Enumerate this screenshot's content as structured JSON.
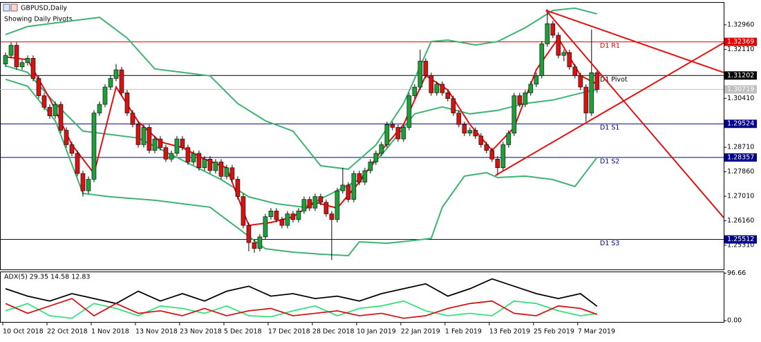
{
  "chart_data": {
    "type": "candlestick",
    "title": "GBPUSD,Daily",
    "subtitle": "Showing Daily Pivots.",
    "xlim": [
      -1,
      129.9
    ],
    "xticks": [
      {
        "value": 0,
        "label": "10 Oct 2018"
      },
      {
        "value": 8,
        "label": "22 Oct 2018"
      },
      {
        "value": 16,
        "label": "1 Nov 2018"
      },
      {
        "value": 24,
        "label": "13 Nov 2018"
      },
      {
        "value": 32,
        "label": "23 Nov 2018"
      },
      {
        "value": 40,
        "label": "5 Dec 2018"
      },
      {
        "value": 48,
        "label": "17 Dec 2018"
      },
      {
        "value": 56,
        "label": "28 Dec 2018"
      },
      {
        "value": 64,
        "label": "10 Jan 2019"
      },
      {
        "value": 72,
        "label": "22 Jan 2019"
      },
      {
        "value": 80,
        "label": "1 Feb 2019"
      },
      {
        "value": 88,
        "label": "13 Feb 2019"
      },
      {
        "value": 96,
        "label": "25 Feb 2019"
      },
      {
        "value": 104,
        "label": "7 Mar 2019"
      }
    ],
    "ylim": [
      1.2447,
      1.3375
    ],
    "yticks": [
      {
        "value": 1.3296,
        "label": "1.32960"
      },
      {
        "value": 1.3211,
        "label": "1.32110"
      },
      {
        "value": 1.3041,
        "label": "1.30410"
      },
      {
        "value": 1.2871,
        "label": "1.28710"
      },
      {
        "value": 1.2786,
        "label": "1.27860"
      },
      {
        "value": 1.2701,
        "label": "1.27010"
      },
      {
        "value": 1.2616,
        "label": "1.26160"
      },
      {
        "value": 1.2531,
        "label": "1.25310"
      }
    ],
    "up_color": "#1f9e3a",
    "down_color": "#d41414",
    "open": [
      1.316,
      1.319,
      1.3225,
      1.315,
      1.3165,
      1.318,
      1.311,
      1.305,
      1.301,
      1.298,
      1.302,
      1.293,
      1.288,
      1.285,
      1.278,
      1.272,
      1.276,
      1.299,
      1.302,
      1.308,
      1.311,
      1.314,
      1.306,
      1.299,
      1.295,
      1.288,
      1.294,
      1.286,
      1.29,
      1.287,
      1.283,
      1.285,
      1.29,
      1.287,
      1.282,
      1.285,
      1.28,
      1.283,
      1.279,
      1.282,
      1.277,
      1.28,
      1.276,
      1.27,
      1.26,
      1.254,
      1.252,
      1.256,
      1.263,
      1.265,
      1.262,
      1.26,
      1.264,
      1.262,
      1.265,
      1.269,
      1.266,
      1.27,
      1.268,
      1.264,
      1.262,
      1.272,
      1.274,
      1.269,
      1.278,
      1.275,
      1.279,
      1.282,
      1.285,
      1.288,
      1.295,
      1.294,
      1.29,
      1.294,
      1.305,
      1.308,
      1.317,
      1.312,
      1.306,
      1.309,
      1.306,
      1.304,
      1.299,
      1.295,
      1.292,
      1.293,
      1.291,
      1.288,
      1.286,
      1.283,
      1.28,
      1.288,
      1.292,
      1.305,
      1.302,
      1.306,
      1.309,
      1.312,
      1.323,
      1.33,
      1.326,
      1.319,
      1.32,
      1.315,
      1.312,
      1.308,
      1.299,
      1.313
    ],
    "high": [
      1.32,
      1.3235,
      1.3235,
      1.3175,
      1.319,
      1.319,
      1.312,
      1.306,
      1.302,
      1.303,
      1.303,
      1.294,
      1.289,
      1.286,
      1.279,
      1.277,
      1.3,
      1.303,
      1.309,
      1.312,
      1.316,
      1.315,
      1.307,
      1.3,
      1.296,
      1.295,
      1.295,
      1.291,
      1.291,
      1.288,
      1.286,
      1.291,
      1.291,
      1.288,
      1.286,
      1.286,
      1.284,
      1.284,
      1.283,
      1.283,
      1.281,
      1.281,
      1.277,
      1.271,
      1.261,
      1.255,
      1.257,
      1.264,
      1.266,
      1.266,
      1.263,
      1.265,
      1.265,
      1.266,
      1.27,
      1.27,
      1.271,
      1.271,
      1.269,
      1.265,
      1.273,
      1.28,
      1.275,
      1.279,
      1.279,
      1.28,
      1.283,
      1.286,
      1.289,
      1.296,
      1.296,
      1.295,
      1.295,
      1.306,
      1.309,
      1.321,
      1.318,
      1.313,
      1.31,
      1.31,
      1.307,
      1.305,
      1.3,
      1.296,
      1.294,
      1.294,
      1.292,
      1.289,
      1.287,
      1.284,
      1.289,
      1.293,
      1.306,
      1.306,
      1.307,
      1.31,
      1.313,
      1.324,
      1.335,
      1.331,
      1.327,
      1.321,
      1.321,
      1.316,
      1.313,
      1.309,
      1.328,
      1.314
    ],
    "low": [
      1.315,
      1.318,
      1.314,
      1.314,
      1.3155,
      1.31,
      1.304,
      1.3,
      1.297,
      1.297,
      1.292,
      1.287,
      1.284,
      1.277,
      1.27,
      1.271,
      1.275,
      1.298,
      1.301,
      1.307,
      1.31,
      1.305,
      1.298,
      1.294,
      1.287,
      1.287,
      1.285,
      1.285,
      1.286,
      1.282,
      1.282,
      1.284,
      1.286,
      1.281,
      1.281,
      1.279,
      1.279,
      1.278,
      1.278,
      1.276,
      1.276,
      1.275,
      1.269,
      1.259,
      1.251,
      1.2505,
      1.251,
      1.255,
      1.262,
      1.261,
      1.259,
      1.259,
      1.261,
      1.261,
      1.264,
      1.265,
      1.265,
      1.267,
      1.263,
      1.248,
      1.261,
      1.271,
      1.268,
      1.268,
      1.274,
      1.274,
      1.278,
      1.281,
      1.284,
      1.287,
      1.293,
      1.289,
      1.289,
      1.293,
      1.304,
      1.307,
      1.311,
      1.305,
      1.305,
      1.305,
      1.303,
      1.298,
      1.294,
      1.291,
      1.291,
      1.29,
      1.287,
      1.285,
      1.282,
      1.2773,
      1.279,
      1.287,
      1.291,
      1.301,
      1.301,
      1.305,
      1.308,
      1.311,
      1.322,
      1.325,
      1.318,
      1.317,
      1.314,
      1.311,
      1.307,
      1.296,
      1.298,
      1.306
    ],
    "close": [
      1.319,
      1.3225,
      1.315,
      1.3165,
      1.318,
      1.311,
      1.305,
      1.301,
      1.298,
      1.302,
      1.293,
      1.288,
      1.285,
      1.278,
      1.272,
      1.276,
      1.299,
      1.302,
      1.308,
      1.311,
      1.314,
      1.306,
      1.299,
      1.295,
      1.288,
      1.294,
      1.286,
      1.29,
      1.287,
      1.283,
      1.285,
      1.29,
      1.287,
      1.282,
      1.285,
      1.28,
      1.283,
      1.279,
      1.282,
      1.277,
      1.28,
      1.276,
      1.27,
      1.26,
      1.254,
      1.252,
      1.256,
      1.263,
      1.265,
      1.262,
      1.26,
      1.264,
      1.262,
      1.265,
      1.269,
      1.266,
      1.27,
      1.268,
      1.264,
      1.262,
      1.272,
      1.274,
      1.269,
      1.278,
      1.275,
      1.279,
      1.282,
      1.285,
      1.288,
      1.295,
      1.294,
      1.29,
      1.294,
      1.305,
      1.308,
      1.317,
      1.312,
      1.306,
      1.309,
      1.306,
      1.304,
      1.299,
      1.295,
      1.292,
      1.293,
      1.291,
      1.288,
      1.286,
      1.283,
      1.28,
      1.288,
      1.292,
      1.305,
      1.302,
      1.306,
      1.309,
      1.312,
      1.323,
      1.33,
      1.326,
      1.319,
      1.32,
      1.315,
      1.312,
      1.308,
      1.299,
      1.313,
      1.3072
    ],
    "overlays": [
      {
        "color": "#3cb371",
        "x": [
          0,
          4,
          12,
          17,
          22,
          27,
          32,
          37,
          42,
          47,
          52,
          57,
          62,
          67,
          72,
          77,
          80,
          85,
          89,
          94,
          99,
          103,
          107
        ],
        "values": [
          1.3262,
          1.329,
          1.331,
          1.3322,
          1.325,
          1.3143,
          1.3131,
          1.3119,
          1.3023,
          1.2963,
          1.2927,
          1.2807,
          1.2795,
          1.2879,
          1.3023,
          1.3238,
          1.3243,
          1.3226,
          1.3238,
          1.3286,
          1.3346,
          1.3354,
          1.3334
        ]
      },
      {
        "color": "#3cb371",
        "x": [
          0,
          4,
          9,
          14,
          19,
          24,
          29,
          34,
          39,
          44,
          49,
          54,
          59,
          64,
          69,
          74,
          79,
          84,
          89,
          94,
          99,
          104,
          107
        ],
        "values": [
          1.3154,
          1.3131,
          1.3023,
          1.2927,
          1.2915,
          1.2903,
          1.2855,
          1.2807,
          1.2759,
          1.2699,
          1.2675,
          1.2663,
          1.2711,
          1.2759,
          1.2867,
          1.2987,
          1.3011,
          1.2987,
          1.2999,
          1.3023,
          1.3035,
          1.3059,
          1.3071
        ]
      },
      {
        "color": "#3cb371",
        "x": [
          0,
          4,
          9,
          14,
          19,
          27,
          32,
          37,
          42,
          47,
          52,
          57,
          62,
          64,
          69,
          74,
          77,
          79,
          83,
          87,
          89,
          94,
          99,
          103,
          107
        ],
        "values": [
          1.3107,
          1.3083,
          1.2963,
          1.2711,
          1.2699,
          1.2687,
          1.2675,
          1.2663,
          1.2591,
          1.2519,
          1.2507,
          1.25,
          1.2495,
          1.2543,
          1.2538,
          1.2548,
          1.2555,
          1.2663,
          1.2771,
          1.2783,
          1.2766,
          1.2771,
          1.2759,
          1.2735,
          1.2836
        ]
      },
      {
        "color": "#e01010",
        "x": [
          0,
          4,
          8,
          12,
          16,
          20,
          24,
          28,
          32,
          36,
          40,
          44,
          48,
          52,
          56,
          60,
          64,
          68,
          72,
          76,
          80,
          84,
          88,
          92,
          96,
          100,
          104,
          107
        ],
        "values": [
          1.3185,
          1.3175,
          1.304,
          1.288,
          1.278,
          1.308,
          1.296,
          1.289,
          1.287,
          1.283,
          1.28,
          1.26,
          1.261,
          1.263,
          1.268,
          1.266,
          1.275,
          1.286,
          1.295,
          1.312,
          1.307,
          1.295,
          1.286,
          1.294,
          1.314,
          1.325,
          1.312,
          1.309
        ]
      }
    ],
    "trendline_color": "#e01010",
    "trendlines": [
      {
        "x": [
          97.75,
          129.9
        ],
        "values": [
          1.33464,
          1.31305
        ]
      },
      {
        "x": [
          97.75,
          129.9
        ],
        "values": [
          1.33464,
          1.2627
        ]
      },
      {
        "x": [
          88.6,
          129.9
        ],
        "values": [
          1.27732,
          1.32336
        ]
      }
    ],
    "levels": [
      {
        "label": "D1 R1",
        "value": 1.32369,
        "color": "#e00000"
      },
      {
        "label": "D1 Pivot",
        "value": 1.31202,
        "color": "#000000"
      },
      {
        "label": "D1 S1",
        "value": 1.29524,
        "color": "#00008b"
      },
      {
        "label": "D1 S2",
        "value": 1.28357,
        "color": "#00008b"
      },
      {
        "label": "D1 S3",
        "value": 1.25512,
        "color": "#00008b"
      }
    ],
    "current_price": 1.30719,
    "indicator": {
      "title": "ADX(5) 29.35 14.58 12.83",
      "ylim": [
        -4,
        100
      ],
      "yticks": [
        96.66,
        {
          "value": 0,
          "label": "0.00"
        }
      ],
      "series": [
        {
          "color": "#000000",
          "x": [
            0,
            4,
            8,
            12,
            16,
            20,
            24,
            28,
            32,
            36,
            40,
            44,
            48,
            52,
            56,
            60,
            64,
            68,
            72,
            76,
            80,
            84,
            88,
            92,
            96,
            100,
            104,
            107
          ],
          "values": [
            65,
            50,
            40,
            55,
            45,
            35,
            60,
            40,
            55,
            40,
            60,
            70,
            50,
            55,
            45,
            50,
            40,
            55,
            65,
            75,
            50,
            65,
            85,
            70,
            55,
            45,
            55,
            29.35
          ]
        },
        {
          "color": "#33e07a",
          "x": [
            0,
            4,
            8,
            12,
            16,
            20,
            24,
            28,
            32,
            36,
            40,
            44,
            48,
            52,
            56,
            60,
            64,
            68,
            72,
            76,
            80,
            84,
            88,
            92,
            96,
            100,
            104,
            107
          ],
          "values": [
            20,
            35,
            10,
            5,
            35,
            25,
            10,
            30,
            25,
            15,
            30,
            10,
            8,
            20,
            30,
            10,
            25,
            30,
            40,
            20,
            10,
            15,
            10,
            40,
            35,
            20,
            10,
            14.58
          ]
        },
        {
          "color": "#d41414",
          "x": [
            0,
            4,
            8,
            12,
            16,
            20,
            24,
            28,
            32,
            36,
            40,
            44,
            48,
            52,
            56,
            60,
            64,
            68,
            72,
            76,
            80,
            84,
            88,
            92,
            96,
            100,
            104,
            107
          ],
          "values": [
            35,
            15,
            30,
            45,
            10,
            35,
            15,
            20,
            10,
            25,
            10,
            20,
            25,
            10,
            15,
            20,
            10,
            15,
            5,
            10,
            25,
            35,
            40,
            15,
            10,
            30,
            25,
            12.83
          ]
        }
      ]
    }
  }
}
